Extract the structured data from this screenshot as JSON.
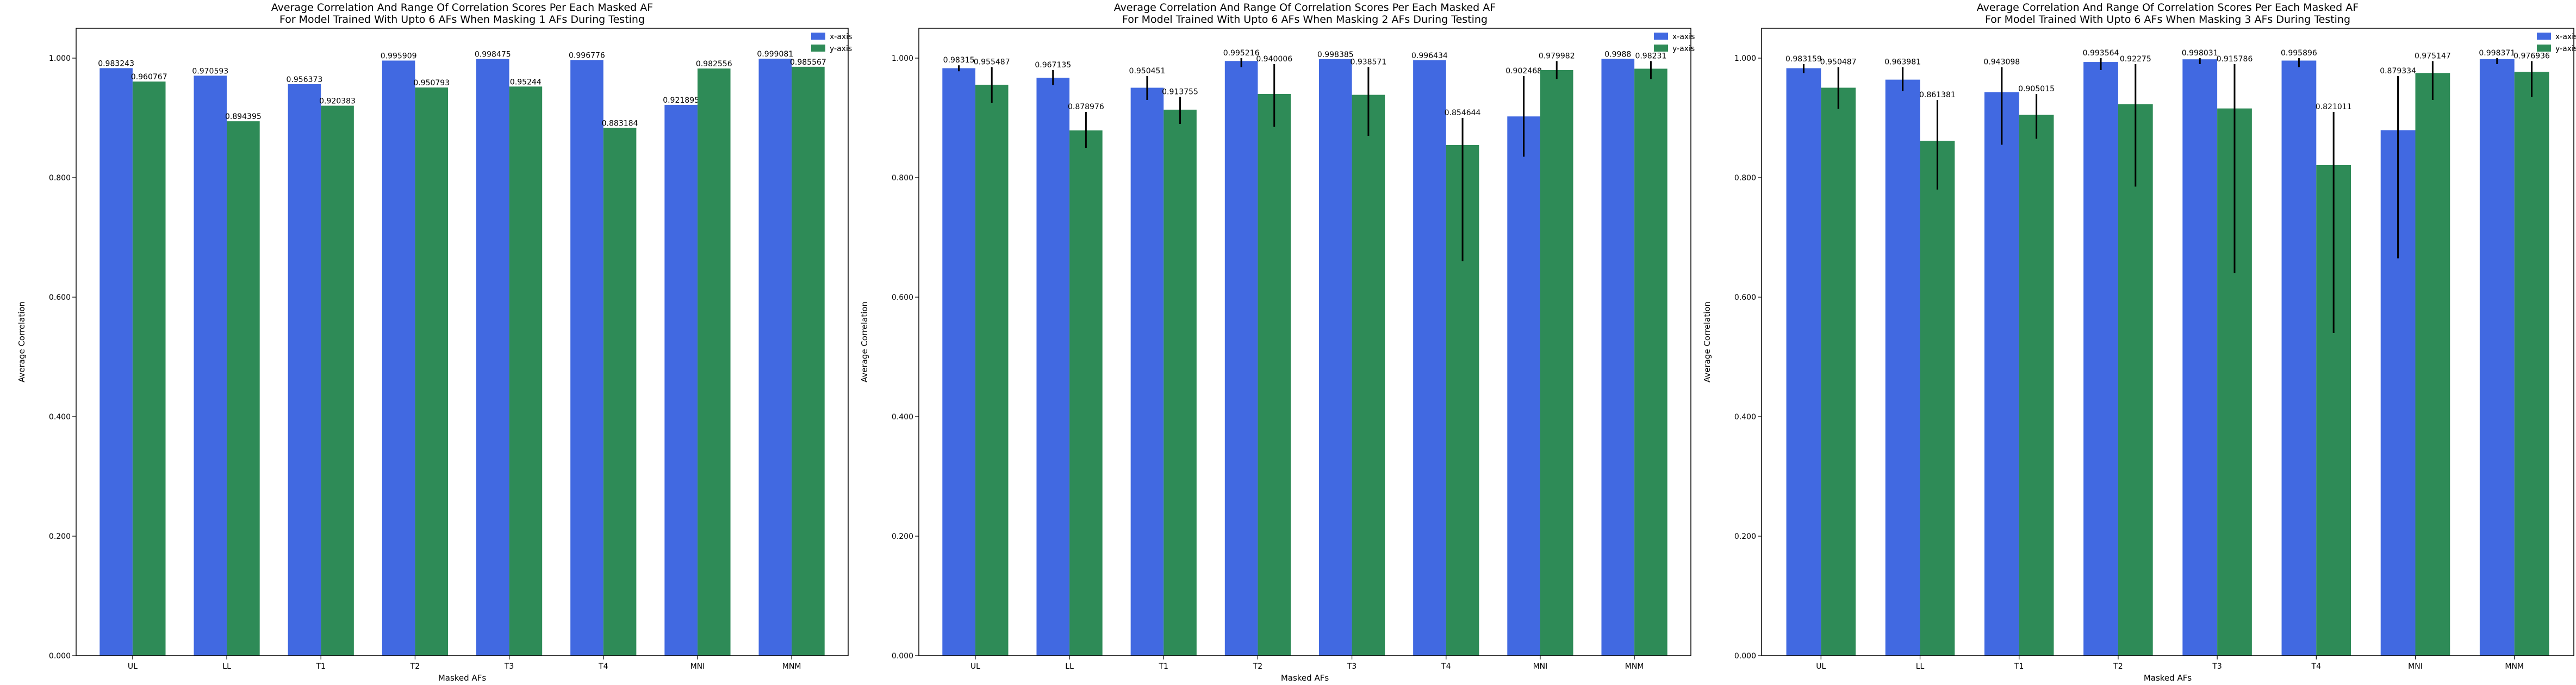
{
  "colors": {
    "x_axis": "#4169e1",
    "y_axis": "#2e8b57",
    "error_bar": "#000000"
  },
  "chart_data": [
    {
      "type": "bar",
      "title": "Average Correlation And Range Of Correlation Scores Per Each Masked AF",
      "subtitle": "For Model Trained With Upto 6 AFs When Masking 1 AFs During Testing",
      "xlabel": "Masked AFs",
      "ylabel": "Average Correlation",
      "ylim": [
        0,
        1.05
      ],
      "yticks": [
        "0.000",
        "0.200",
        "0.400",
        "0.600",
        "0.800",
        "1.000"
      ],
      "categories": [
        "UL",
        "LL",
        "T1",
        "T2",
        "T3",
        "T4",
        "MNI",
        "MNM"
      ],
      "legend_position": "top-right",
      "series": [
        {
          "name": "x-axis",
          "values": [
            0.983243,
            0.970593,
            0.956373,
            0.995909,
            0.998475,
            0.996776,
            0.921895,
            0.999081
          ],
          "labels": [
            "0.983243",
            "0.970593",
            "0.956373",
            "0.995909",
            "0.998475",
            "0.996776",
            "0.921895",
            "0.999081"
          ]
        },
        {
          "name": "y-axis",
          "values": [
            0.960767,
            0.894395,
            0.920383,
            0.950793,
            0.95244,
            0.883184,
            0.982556,
            0.985567
          ],
          "labels": [
            "0.960767",
            "0.894395",
            "0.920383",
            "0.950793",
            "0.95244",
            "0.883184",
            "0.982556",
            "0.985567"
          ]
        }
      ]
    },
    {
      "type": "bar",
      "title": "Average Correlation And Range Of Correlation Scores Per Each Masked AF",
      "subtitle": "For Model Trained With Upto 6 AFs When Masking 2 AFs During Testing",
      "xlabel": "Masked AFs",
      "ylabel": "Average Correlation",
      "ylim": [
        0,
        1.05
      ],
      "yticks": [
        "0.000",
        "0.200",
        "0.400",
        "0.600",
        "0.800",
        "1.000"
      ],
      "categories": [
        "UL",
        "LL",
        "T1",
        "T2",
        "T3",
        "T4",
        "MNI",
        "MNM"
      ],
      "legend_position": "top-right",
      "series": [
        {
          "name": "x-axis",
          "values": [
            0.98315,
            0.967135,
            0.950451,
            0.995216,
            0.998385,
            0.996434,
            0.902468,
            0.9988
          ],
          "labels": [
            "0.98315",
            "0.967135",
            "0.950451",
            "0.995216",
            "0.998385",
            "0.996434",
            "0.902468",
            "0.9988"
          ],
          "error_ranges": [
            [
              0.978,
              0.988
            ],
            [
              0.955,
              0.98
            ],
            [
              0.93,
              0.97
            ],
            [
              0.985,
              1.0
            ],
            null,
            null,
            [
              0.835,
              0.97
            ],
            null
          ]
        },
        {
          "name": "y-axis",
          "values": [
            0.955487,
            0.878976,
            0.913755,
            0.940006,
            0.938571,
            0.854644,
            0.979982,
            0.98231
          ],
          "labels": [
            "0.955487",
            "0.878976",
            "0.913755",
            "0.940006",
            "0.938571",
            "0.854644",
            "0.979982",
            "0.98231"
          ],
          "error_ranges": [
            [
              0.925,
              0.985
            ],
            [
              0.85,
              0.91
            ],
            [
              0.89,
              0.935
            ],
            [
              0.885,
              0.99
            ],
            [
              0.87,
              0.985
            ],
            [
              0.66,
              0.9
            ],
            [
              0.965,
              0.995
            ],
            [
              0.965,
              0.995
            ]
          ]
        }
      ]
    },
    {
      "type": "bar",
      "title": "Average Correlation And Range Of Correlation Scores Per Each Masked AF",
      "subtitle": "For Model Trained With Upto 6 AFs When Masking 3 AFs During Testing",
      "xlabel": "Masked AFs",
      "ylabel": "Average Correlation",
      "ylim": [
        0,
        1.05
      ],
      "yticks": [
        "0.000",
        "0.200",
        "0.400",
        "0.600",
        "0.800",
        "1.000"
      ],
      "categories": [
        "UL",
        "LL",
        "T1",
        "T2",
        "T3",
        "T4",
        "MNI",
        "MNM"
      ],
      "legend_position": "top-right",
      "series": [
        {
          "name": "x-axis",
          "values": [
            0.983159,
            0.963981,
            0.943098,
            0.993564,
            0.998031,
            0.995896,
            0.879334,
            0.998371
          ],
          "labels": [
            "0.983159",
            "0.963981",
            "0.943098",
            "0.993564",
            "0.998031",
            "0.995896",
            "0.879334",
            "0.998371"
          ],
          "error_ranges": [
            [
              0.975,
              0.99
            ],
            [
              0.945,
              0.985
            ],
            [
              0.855,
              0.985
            ],
            [
              0.98,
              1.0
            ],
            [
              0.99,
              1.0
            ],
            [
              0.985,
              1.0
            ],
            [
              0.665,
              0.97
            ],
            [
              0.99,
              1.0
            ]
          ]
        },
        {
          "name": "y-axis",
          "values": [
            0.950487,
            0.861381,
            0.905015,
            0.92275,
            0.915786,
            0.821011,
            0.975147,
            0.976936
          ],
          "labels": [
            "0.950487",
            "0.861381",
            "0.905015",
            "0.92275",
            "0.915786",
            "0.821011",
            "0.975147",
            "0.976936"
          ],
          "error_ranges": [
            [
              0.915,
              0.985
            ],
            [
              0.78,
              0.93
            ],
            [
              0.865,
              0.94
            ],
            [
              0.785,
              0.99
            ],
            [
              0.64,
              0.99
            ],
            [
              0.54,
              0.91
            ],
            [
              0.93,
              0.995
            ],
            [
              0.935,
              0.995
            ]
          ]
        }
      ]
    }
  ]
}
